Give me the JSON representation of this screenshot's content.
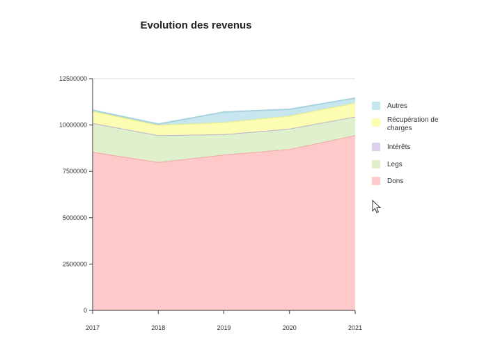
{
  "chart_data": {
    "type": "area",
    "stacked": true,
    "title": "Evolution des revenus",
    "xlabel": "",
    "ylabel": "",
    "x": [
      "2017",
      "2018",
      "2019",
      "2020",
      "2021"
    ],
    "ylim": [
      0,
      12500000
    ],
    "yticks": [
      "0",
      "2500000",
      "5000000",
      "7500000",
      "10000000",
      "12500000"
    ],
    "grid": true,
    "legend_position": "right",
    "series": [
      {
        "name": "Dons",
        "color": "#ffc9c9",
        "line": "#f4a6a6",
        "values": [
          8550000,
          8000000,
          8400000,
          8700000,
          9450000
        ]
      },
      {
        "name": "Legs",
        "color": "#dff0cc",
        "line": "#a9bf98",
        "values": [
          1550000,
          1450000,
          1100000,
          1100000,
          1000000
        ]
      },
      {
        "name": "Intérêts",
        "color": "#ddd0ea",
        "line": "#c2b4d6",
        "values": [
          0,
          0,
          0,
          0,
          0
        ]
      },
      {
        "name": "Récupération de charges",
        "color": "#fcfdb2",
        "line": "#eaeb7f",
        "values": [
          650000,
          550000,
          650000,
          700000,
          750000
        ]
      },
      {
        "name": "Autres",
        "color": "#c8e6ee",
        "line": "#a7d3df",
        "values": [
          50000,
          50000,
          550000,
          350000,
          250000
        ]
      }
    ],
    "legend_order": [
      "Autres",
      "Récupération de charges",
      "Intérêts",
      "Legs",
      "Dons"
    ]
  }
}
